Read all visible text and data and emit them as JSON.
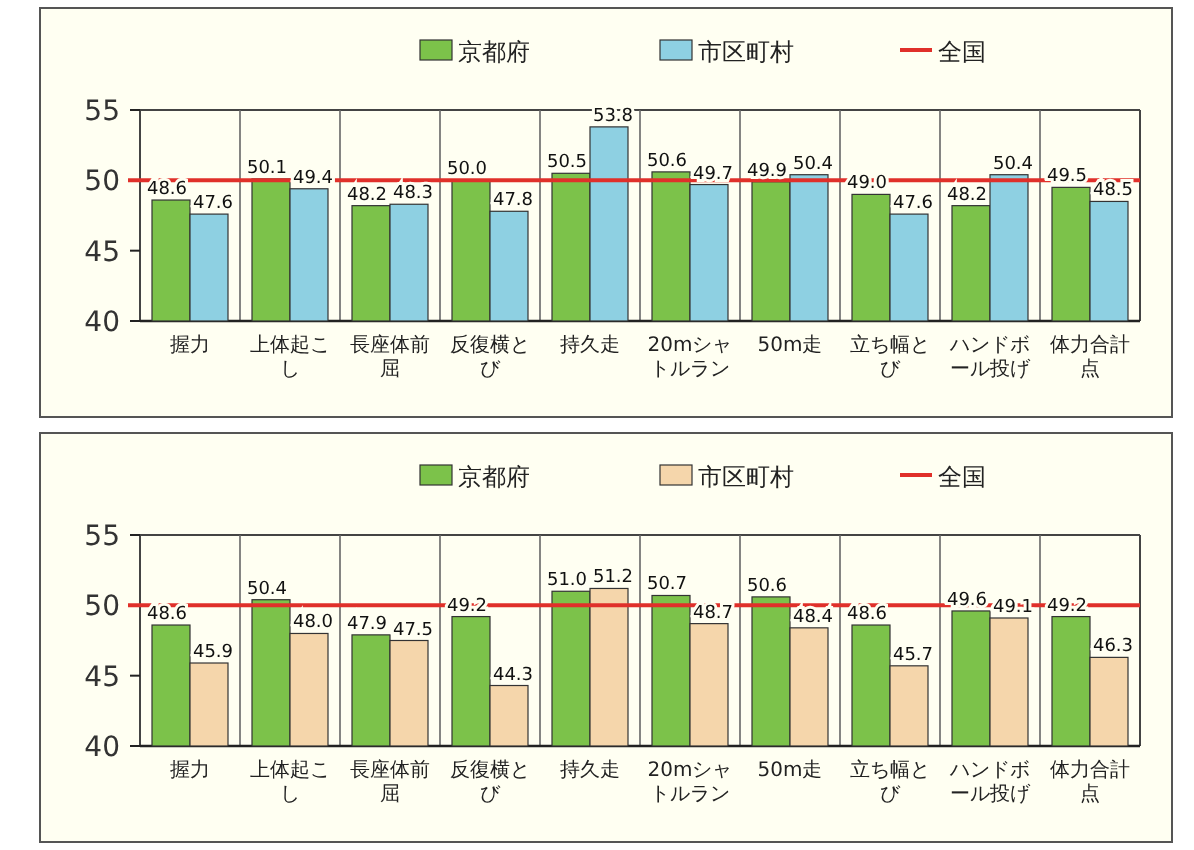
{
  "chart_data": [
    {
      "type": "bar",
      "categories": [
        "握力",
        "上体起こし",
        "長座体前屈",
        "反復横とび",
        "持久走",
        "20mシャトルラン",
        "50m走",
        "立ち幅とび",
        "ハンドボール投げ",
        "体力合計点"
      ],
      "series": [
        {
          "name": "京都府",
          "color": "#7cc24a",
          "values": [
            48.6,
            50.1,
            48.2,
            50.0,
            50.5,
            50.6,
            49.9,
            49.0,
            48.2,
            49.5
          ],
          "value_labels": [
            "48.6",
            "50.1",
            "48.2",
            "50.0",
            "50.5",
            "50.6",
            "49.9",
            "49.0",
            "48.2",
            "49.5"
          ]
        },
        {
          "name": "市区町村",
          "color": "#8ed0e2",
          "values": [
            47.6,
            49.4,
            48.3,
            47.8,
            53.8,
            49.7,
            50.4,
            47.6,
            50.4,
            48.5
          ],
          "value_labels": [
            "47.6",
            "49.4",
            "48.3",
            "47.8",
            "53.8",
            "49.7",
            "50.4",
            "47.6",
            "50.4",
            "48.5"
          ]
        }
      ],
      "ref_lines": [
        {
          "axis": "y",
          "value": 50,
          "label": "全国",
          "color": "#e0302a"
        }
      ],
      "ylim": [
        40,
        55
      ],
      "yticks": [
        40,
        45,
        50,
        55
      ],
      "legend": "top"
    },
    {
      "type": "bar",
      "categories": [
        "握力",
        "上体起こし",
        "長座体前屈",
        "反復横とび",
        "持久走",
        "20mシャトルラン",
        "50m走",
        "立ち幅とび",
        "ハンドボール投げ",
        "体力合計点"
      ],
      "series": [
        {
          "name": "京都府",
          "color": "#7cc24a",
          "values": [
            48.6,
            50.4,
            47.9,
            49.2,
            51.0,
            50.7,
            50.6,
            48.6,
            49.6,
            49.2
          ],
          "value_labels": [
            "48.6",
            "50.4",
            "47.9",
            "49.2",
            "51.0",
            "50.7",
            "50.6",
            "48.6",
            "49.6",
            "49.2"
          ]
        },
        {
          "name": "市区町村",
          "color": "#f5d6ab",
          "values": [
            45.9,
            48.0,
            47.5,
            44.3,
            51.2,
            48.7,
            48.4,
            45.7,
            49.1,
            46.3
          ],
          "value_labels": [
            "45.9",
            "48.0",
            "47.5",
            "44.3",
            "51.2",
            "48.7",
            "48.4",
            "45.7",
            "49.1",
            "46.3"
          ]
        }
      ],
      "ref_lines": [
        {
          "axis": "y",
          "value": 50,
          "label": "全国",
          "color": "#e0302a"
        }
      ],
      "ylim": [
        40,
        55
      ],
      "yticks": [
        40,
        45,
        50,
        55
      ],
      "legend": "top"
    }
  ]
}
